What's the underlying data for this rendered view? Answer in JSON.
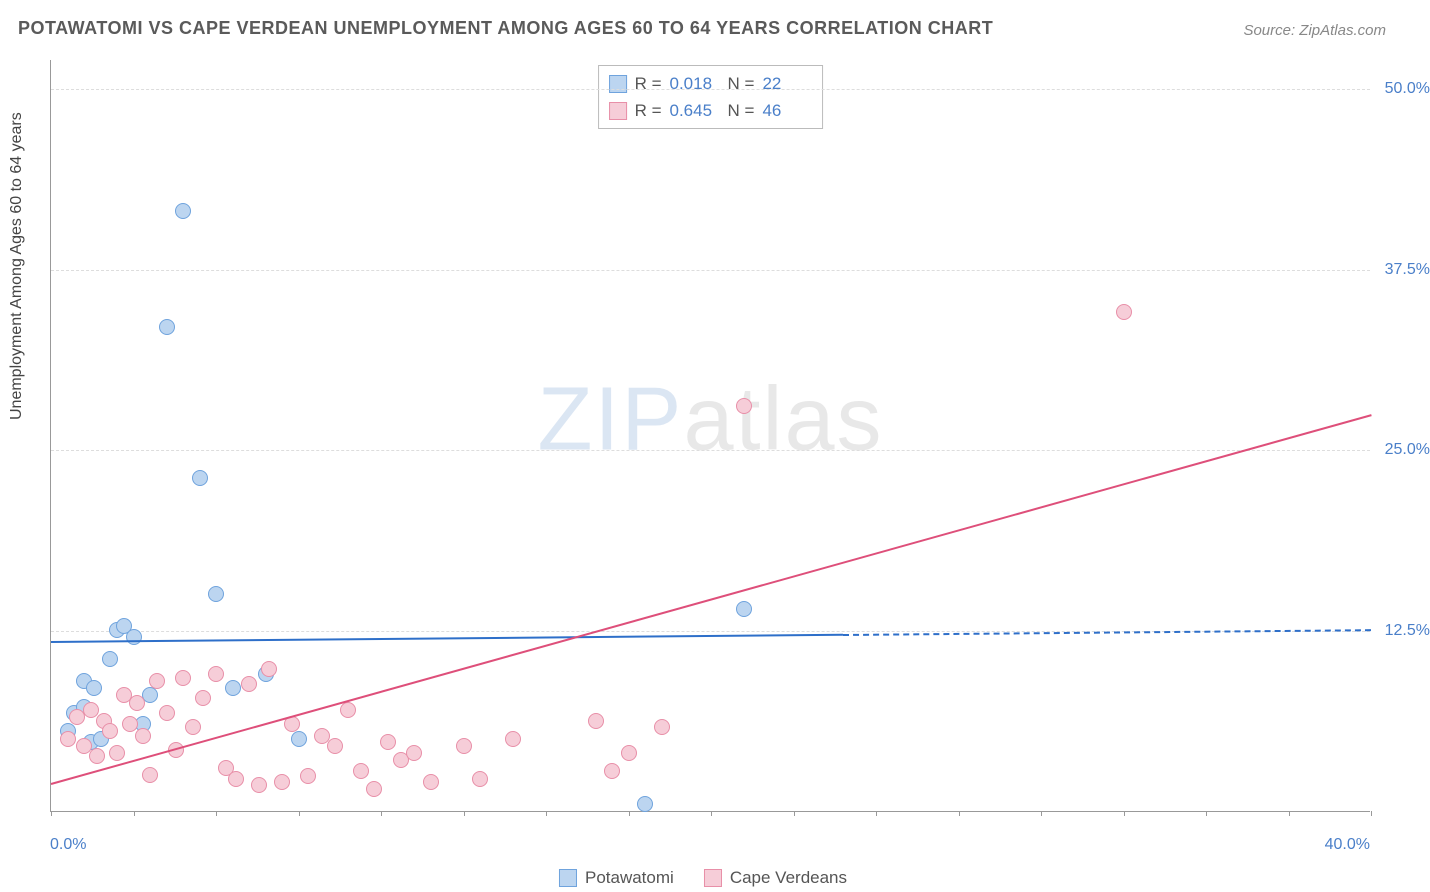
{
  "title": "POTAWATOMI VS CAPE VERDEAN UNEMPLOYMENT AMONG AGES 60 TO 64 YEARS CORRELATION CHART",
  "source": "Source: ZipAtlas.com",
  "yaxis_label": "Unemployment Among Ages 60 to 64 years",
  "watermark_bold": "ZIP",
  "watermark_thin": "atlas",
  "chart": {
    "type": "scatter",
    "xlim": [
      0,
      40
    ],
    "ylim": [
      0,
      52
    ],
    "x_ticks_minor_step": 2.5,
    "x_label_min": "0.0%",
    "x_label_max": "40.0%",
    "y_ticks": [
      12.5,
      25.0,
      37.5,
      50.0
    ],
    "y_tick_labels": [
      "12.5%",
      "25.0%",
      "37.5%",
      "50.0%"
    ],
    "background_color": "#ffffff",
    "grid_color": "#dddddd",
    "axis_color": "#999999",
    "series": [
      {
        "name": "Potawatomi",
        "marker_fill": "#bcd5f0",
        "marker_stroke": "#6fa3dd",
        "marker_size": 16,
        "trend_color": "#2e6fc9",
        "trend": {
          "x1": 0,
          "y1": 11.8,
          "x2": 24,
          "y2": 12.3,
          "dash_to_x": 40
        },
        "R": "0.018",
        "N": "22",
        "points": [
          [
            0.5,
            5.5
          ],
          [
            0.7,
            6.8
          ],
          [
            1.0,
            9.0
          ],
          [
            1.0,
            7.2
          ],
          [
            1.2,
            4.8
          ],
          [
            1.3,
            8.5
          ],
          [
            1.5,
            5.0
          ],
          [
            1.8,
            10.5
          ],
          [
            2.0,
            12.5
          ],
          [
            2.2,
            12.8
          ],
          [
            2.5,
            12.0
          ],
          [
            3.0,
            8.0
          ],
          [
            3.5,
            33.5
          ],
          [
            4.0,
            41.5
          ],
          [
            4.5,
            23.0
          ],
          [
            5.0,
            15.0
          ],
          [
            5.5,
            8.5
          ],
          [
            6.5,
            9.5
          ],
          [
            7.5,
            5.0
          ],
          [
            18.0,
            0.5
          ],
          [
            21.0,
            14.0
          ],
          [
            2.8,
            6.0
          ]
        ]
      },
      {
        "name": "Cape Verdeans",
        "marker_fill": "#f6cdd8",
        "marker_stroke": "#e88fa8",
        "marker_size": 16,
        "trend_color": "#de4f7a",
        "trend": {
          "x1": 0,
          "y1": 2.0,
          "x2": 40,
          "y2": 27.5
        },
        "R": "0.645",
        "N": "46",
        "points": [
          [
            0.5,
            5.0
          ],
          [
            0.8,
            6.5
          ],
          [
            1.0,
            4.5
          ],
          [
            1.2,
            7.0
          ],
          [
            1.4,
            3.8
          ],
          [
            1.6,
            6.2
          ],
          [
            1.8,
            5.5
          ],
          [
            2.0,
            4.0
          ],
          [
            2.2,
            8.0
          ],
          [
            2.4,
            6.0
          ],
          [
            2.6,
            7.5
          ],
          [
            2.8,
            5.2
          ],
          [
            3.0,
            2.5
          ],
          [
            3.2,
            9.0
          ],
          [
            3.5,
            6.8
          ],
          [
            3.8,
            4.2
          ],
          [
            4.0,
            9.2
          ],
          [
            4.3,
            5.8
          ],
          [
            4.6,
            7.8
          ],
          [
            5.0,
            9.5
          ],
          [
            5.3,
            3.0
          ],
          [
            5.6,
            2.2
          ],
          [
            6.0,
            8.8
          ],
          [
            6.3,
            1.8
          ],
          [
            6.6,
            9.8
          ],
          [
            7.0,
            2.0
          ],
          [
            7.3,
            6.0
          ],
          [
            7.8,
            2.4
          ],
          [
            8.2,
            5.2
          ],
          [
            8.6,
            4.5
          ],
          [
            9.0,
            7.0
          ],
          [
            9.4,
            2.8
          ],
          [
            9.8,
            1.5
          ],
          [
            10.2,
            4.8
          ],
          [
            10.6,
            3.5
          ],
          [
            11.0,
            4.0
          ],
          [
            11.5,
            2.0
          ],
          [
            12.5,
            4.5
          ],
          [
            13.0,
            2.2
          ],
          [
            16.5,
            6.2
          ],
          [
            17.0,
            2.8
          ],
          [
            17.5,
            4.0
          ],
          [
            18.5,
            5.8
          ],
          [
            21.0,
            28.0
          ],
          [
            32.5,
            34.5
          ],
          [
            14.0,
            5.0
          ]
        ]
      }
    ]
  },
  "stats_box": {
    "rows": [
      {
        "swatch_fill": "#bcd5f0",
        "swatch_stroke": "#6fa3dd",
        "R_label": "R  =",
        "R": "0.018",
        "N_label": "N  =",
        "N": "22"
      },
      {
        "swatch_fill": "#f6cdd8",
        "swatch_stroke": "#e88fa8",
        "R_label": "R  =",
        "R": "0.645",
        "N_label": "N  =",
        "N": "46"
      }
    ]
  },
  "legend": {
    "items": [
      {
        "label": "Potawatomi",
        "fill": "#bcd5f0",
        "stroke": "#6fa3dd"
      },
      {
        "label": "Cape Verdeans",
        "fill": "#f6cdd8",
        "stroke": "#e88fa8"
      }
    ]
  }
}
